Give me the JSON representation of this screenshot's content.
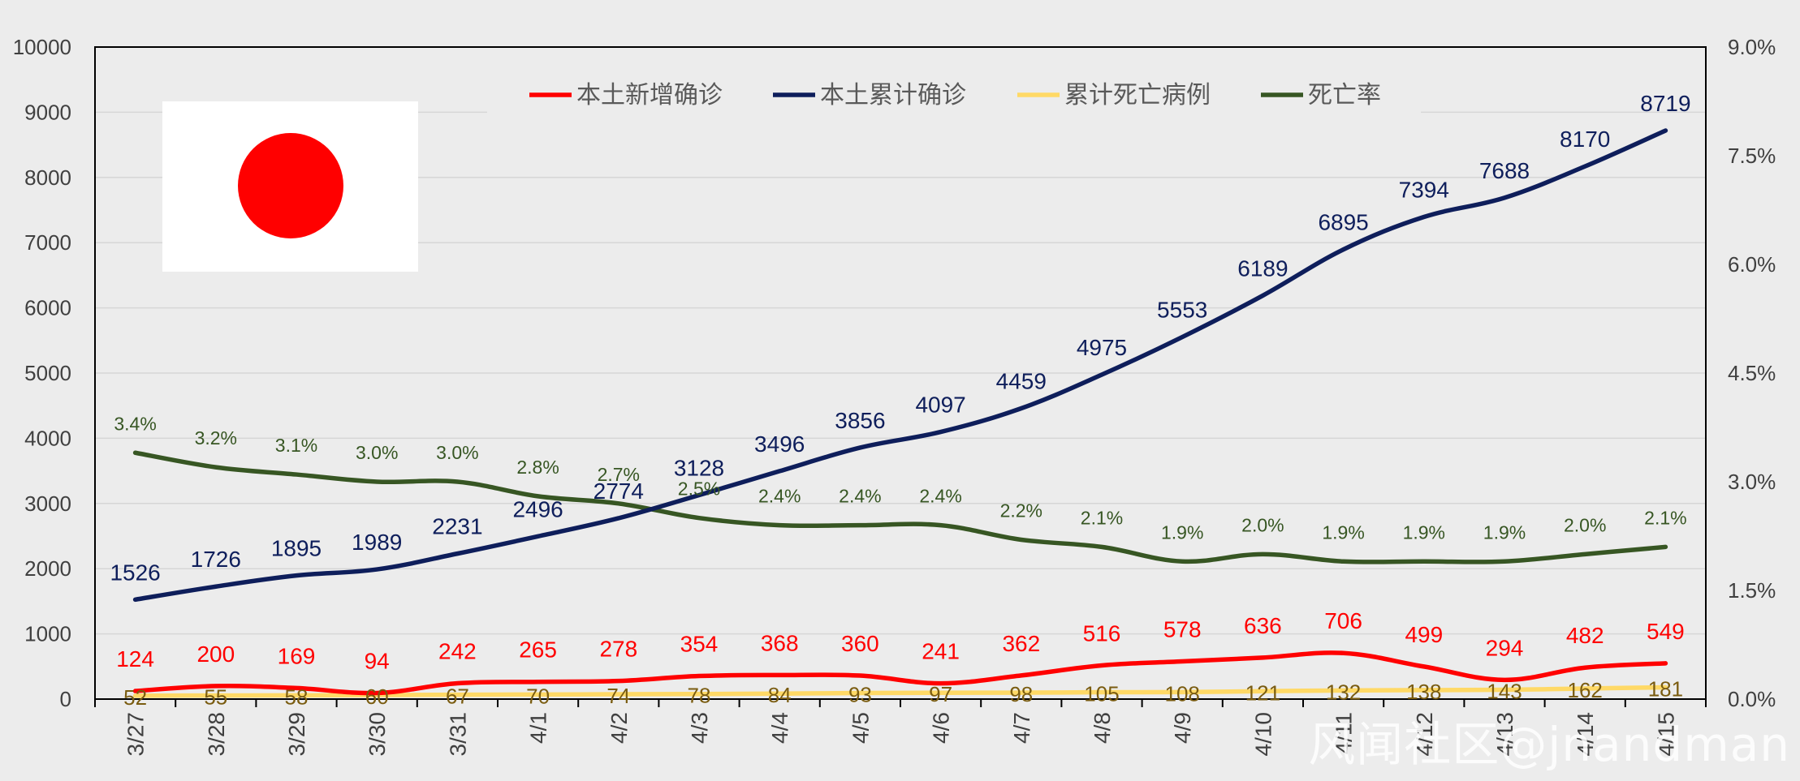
{
  "chart_data": {
    "type": "line",
    "categories": [
      "3/27",
      "3/28",
      "3/29",
      "3/30",
      "3/31",
      "4/1",
      "4/2",
      "4/3",
      "4/4",
      "4/5",
      "4/6",
      "4/7",
      "4/8",
      "4/9",
      "4/10",
      "4/11",
      "4/12",
      "4/13",
      "4/14",
      "4/15"
    ],
    "left_axis": {
      "min": 0,
      "max": 10000,
      "step": 1000,
      "ticks": [
        "0",
        "1000",
        "2000",
        "3000",
        "4000",
        "5000",
        "6000",
        "7000",
        "8000",
        "9000",
        "10000"
      ]
    },
    "right_axis": {
      "min": 0,
      "max": 9,
      "step": 1.5,
      "ticks": [
        "0.0%",
        "1.5%",
        "3.0%",
        "4.5%",
        "6.0%",
        "7.5%",
        "9.0%"
      ]
    },
    "series": [
      {
        "name": "本土新增确诊",
        "axis": "left",
        "color": "#ff0000",
        "label_color": "#ff0000",
        "values": [
          124,
          200,
          169,
          94,
          242,
          265,
          278,
          354,
          368,
          360,
          241,
          362,
          516,
          578,
          636,
          706,
          499,
          294,
          482,
          549
        ]
      },
      {
        "name": "本土累计确诊",
        "axis": "left",
        "color": "#0e1e5b",
        "label_color": "#0e1e5b",
        "values": [
          1526,
          1726,
          1895,
          1989,
          2231,
          2496,
          2774,
          3128,
          3496,
          3856,
          4097,
          4459,
          4975,
          5553,
          6189,
          6895,
          7394,
          7688,
          8170,
          8719
        ]
      },
      {
        "name": "累计死亡病例",
        "axis": "left",
        "color": "#ffd966",
        "label_color": "#7a5c10",
        "values": [
          52,
          55,
          58,
          60,
          67,
          70,
          74,
          78,
          84,
          93,
          97,
          98,
          105,
          108,
          121,
          132,
          138,
          143,
          162,
          181
        ]
      },
      {
        "name": "死亡率",
        "axis": "right",
        "color": "#375623",
        "label_color": "#375623",
        "values": [
          3.4,
          3.2,
          3.1,
          3.0,
          3.0,
          2.8,
          2.7,
          2.5,
          2.4,
          2.4,
          2.4,
          2.2,
          2.1,
          1.9,
          2.0,
          1.9,
          1.9,
          1.9,
          2.0,
          2.1
        ],
        "labels": [
          "3.4%",
          "3.2%",
          "3.1%",
          "3.0%",
          "3.0%",
          "2.8%",
          "2.7%",
          "2.5%",
          "2.4%",
          "2.4%",
          "2.4%",
          "2.2%",
          "2.1%",
          "1.9%",
          "2.0%",
          "1.9%",
          "1.9%",
          "1.9%",
          "2.0%",
          "2.1%"
        ]
      }
    ],
    "legend_position": "top-center",
    "grid": true,
    "flag_colors": {
      "background": "#ffffff",
      "disc": "#ff0000"
    }
  },
  "watermark": "风闻社区@jnandman"
}
